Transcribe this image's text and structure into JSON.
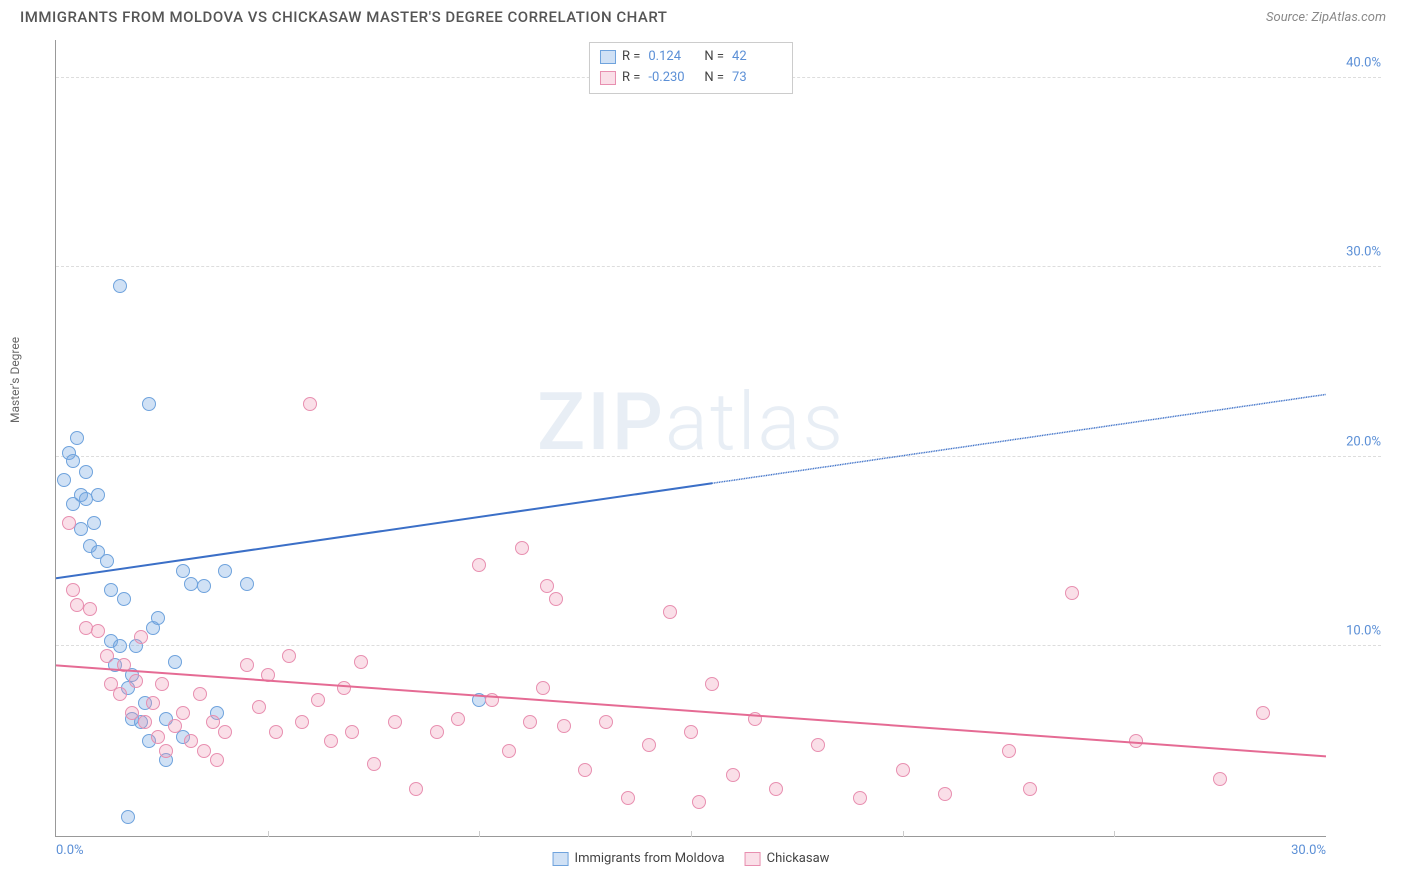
{
  "header": {
    "title": "IMMIGRANTS FROM MOLDOVA VS CHICKASAW MASTER'S DEGREE CORRELATION CHART",
    "source_prefix": "Source: ",
    "source_name": "ZipAtlas.com"
  },
  "ylabel": "Master's Degree",
  "watermark_zip": "ZIP",
  "watermark_atlas": "atlas",
  "chart": {
    "type": "scatter",
    "xlim": [
      0,
      30
    ],
    "ylim": [
      0,
      42
    ],
    "x_min_tick": "0.0%",
    "x_max_tick": "30.0%",
    "yticks": [
      {
        "v": 10,
        "label": "10.0%"
      },
      {
        "v": 20,
        "label": "20.0%"
      },
      {
        "v": 30,
        "label": "30.0%"
      },
      {
        "v": 40,
        "label": "40.0%"
      }
    ],
    "xticks_minor": [
      5,
      10,
      15,
      20,
      25
    ],
    "background_color": "#ffffff",
    "grid_color": "#dddddd",
    "tick_label_color": "#5b8fd6",
    "axis_color": "#999999",
    "series": [
      {
        "key": "moldova",
        "label": "Immigrants from Moldova",
        "fill": "rgba(120,170,225,0.35)",
        "stroke": "#6fa3dd",
        "line_color": "#3b6fc7",
        "marker_radius": 7,
        "r": 0.124,
        "n": 42,
        "trend": {
          "x1": 0,
          "y1": 13.6,
          "x2": 30,
          "y2": 23.3,
          "solid_until_x": 15.5
        },
        "points": [
          [
            0.2,
            18.8
          ],
          [
            0.3,
            20.2
          ],
          [
            0.4,
            17.5
          ],
          [
            0.4,
            19.8
          ],
          [
            0.5,
            21.0
          ],
          [
            0.6,
            18.0
          ],
          [
            0.6,
            16.2
          ],
          [
            0.7,
            17.8
          ],
          [
            0.7,
            19.2
          ],
          [
            0.8,
            15.3
          ],
          [
            0.9,
            16.5
          ],
          [
            1.0,
            18.0
          ],
          [
            1.0,
            15.0
          ],
          [
            1.2,
            14.5
          ],
          [
            1.3,
            13.0
          ],
          [
            1.3,
            10.3
          ],
          [
            1.4,
            9.0
          ],
          [
            1.5,
            29.0
          ],
          [
            1.5,
            10.0
          ],
          [
            1.6,
            12.5
          ],
          [
            1.7,
            7.8
          ],
          [
            1.8,
            8.5
          ],
          [
            1.8,
            6.2
          ],
          [
            1.9,
            10.0
          ],
          [
            2.0,
            6.0
          ],
          [
            2.1,
            7.0
          ],
          [
            2.2,
            5.0
          ],
          [
            2.2,
            22.8
          ],
          [
            2.3,
            11.0
          ],
          [
            2.4,
            11.5
          ],
          [
            2.6,
            6.2
          ],
          [
            2.8,
            9.2
          ],
          [
            3.0,
            14.0
          ],
          [
            3.2,
            13.3
          ],
          [
            3.5,
            13.2
          ],
          [
            3.8,
            6.5
          ],
          [
            4.0,
            14.0
          ],
          [
            4.5,
            13.3
          ],
          [
            1.7,
            1.0
          ],
          [
            10.0,
            7.2
          ],
          [
            2.6,
            4.0
          ],
          [
            3.0,
            5.2
          ]
        ]
      },
      {
        "key": "chickasaw",
        "label": "Chickasaw",
        "fill": "rgba(240,150,180,0.30)",
        "stroke": "#e88fb0",
        "line_color": "#e56b94",
        "marker_radius": 7,
        "r": -0.23,
        "n": 73,
        "trend": {
          "x1": 0,
          "y1": 9.0,
          "x2": 30,
          "y2": 4.2,
          "solid_until_x": 30
        },
        "points": [
          [
            0.3,
            16.5
          ],
          [
            0.4,
            13.0
          ],
          [
            0.5,
            12.2
          ],
          [
            0.7,
            11.0
          ],
          [
            0.8,
            12.0
          ],
          [
            1.0,
            10.8
          ],
          [
            1.2,
            9.5
          ],
          [
            1.3,
            8.0
          ],
          [
            1.5,
            7.5
          ],
          [
            1.6,
            9.0
          ],
          [
            1.8,
            6.5
          ],
          [
            1.9,
            8.2
          ],
          [
            2.0,
            10.5
          ],
          [
            2.1,
            6.0
          ],
          [
            2.3,
            7.0
          ],
          [
            2.4,
            5.2
          ],
          [
            2.5,
            8.0
          ],
          [
            2.6,
            4.5
          ],
          [
            2.8,
            5.8
          ],
          [
            3.0,
            6.5
          ],
          [
            3.2,
            5.0
          ],
          [
            3.4,
            7.5
          ],
          [
            3.5,
            4.5
          ],
          [
            3.7,
            6.0
          ],
          [
            3.8,
            4.0
          ],
          [
            4.0,
            5.5
          ],
          [
            4.5,
            9.0
          ],
          [
            4.8,
            6.8
          ],
          [
            5.0,
            8.5
          ],
          [
            5.2,
            5.5
          ],
          [
            5.5,
            9.5
          ],
          [
            5.8,
            6.0
          ],
          [
            6.0,
            22.8
          ],
          [
            6.2,
            7.2
          ],
          [
            6.5,
            5.0
          ],
          [
            6.8,
            7.8
          ],
          [
            7.0,
            5.5
          ],
          [
            7.2,
            9.2
          ],
          [
            7.5,
            3.8
          ],
          [
            8.0,
            6.0
          ],
          [
            8.5,
            2.5
          ],
          [
            9.0,
            5.5
          ],
          [
            9.5,
            6.2
          ],
          [
            10.0,
            14.3
          ],
          [
            10.3,
            7.2
          ],
          [
            10.7,
            4.5
          ],
          [
            11.0,
            15.2
          ],
          [
            11.2,
            6.0
          ],
          [
            11.5,
            7.8
          ],
          [
            11.6,
            13.2
          ],
          [
            11.8,
            12.5
          ],
          [
            12.0,
            5.8
          ],
          [
            12.5,
            3.5
          ],
          [
            13.0,
            6.0
          ],
          [
            13.5,
            2.0
          ],
          [
            14.0,
            4.8
          ],
          [
            14.5,
            11.8
          ],
          [
            15.0,
            5.5
          ],
          [
            15.5,
            8.0
          ],
          [
            16.0,
            3.2
          ],
          [
            16.5,
            6.2
          ],
          [
            17.0,
            2.5
          ],
          [
            18.0,
            4.8
          ],
          [
            19.0,
            2.0
          ],
          [
            20.0,
            3.5
          ],
          [
            21.0,
            2.2
          ],
          [
            22.5,
            4.5
          ],
          [
            23.0,
            2.5
          ],
          [
            24.0,
            12.8
          ],
          [
            25.5,
            5.0
          ],
          [
            27.5,
            3.0
          ],
          [
            28.5,
            6.5
          ],
          [
            15.2,
            1.8
          ]
        ]
      }
    ]
  },
  "legend_top": {
    "r_label": "R =",
    "n_label": "N ="
  }
}
